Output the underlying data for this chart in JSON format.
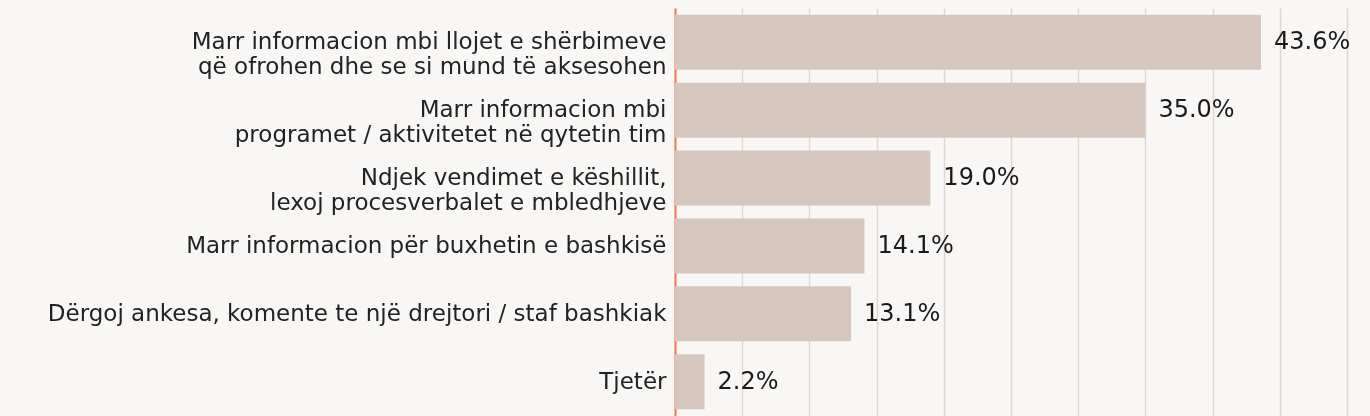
{
  "chart_data": {
    "type": "bar",
    "orientation": "horizontal",
    "categories": [
      "Marr informacion mbi llojet e shërbimeve\nqë ofrohen dhe se si mund të aksesohen",
      "Marr informacion mbi\nprogramet / aktivitetet në qytetin tim",
      "Ndjek vendimet e këshillit,\nlexoj procesverbalet e mbledhjeve",
      "Marr informacion për buxhetin e bashkisë",
      "Dërgoj ankesa, komente te një drejtori / staf bashkiak",
      "Tjetër"
    ],
    "values": [
      43.6,
      35.0,
      19.0,
      14.1,
      13.1,
      2.2
    ],
    "value_labels": [
      "43.6%",
      "35.0%",
      "19.0%",
      "14.1%",
      "13.1%",
      "2.2%"
    ],
    "color": "#d5c7be",
    "xlim": [
      0,
      50
    ],
    "xticks": [
      0,
      5,
      10,
      15,
      20,
      25,
      30,
      35,
      40,
      45,
      50
    ],
    "grid": "x",
    "tick_labels": "y"
  }
}
